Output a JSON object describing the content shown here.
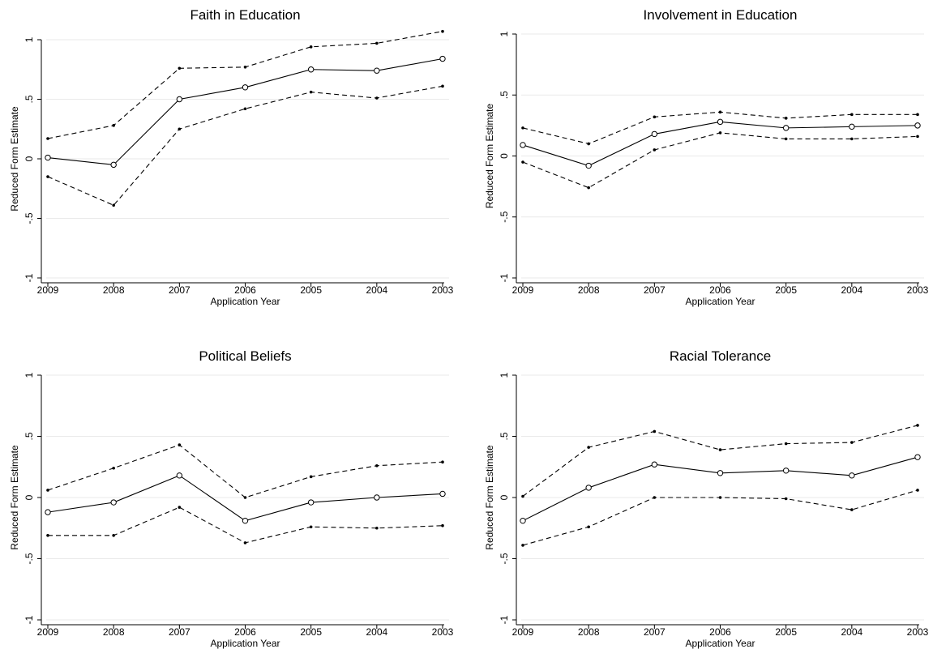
{
  "chart_data": [
    {
      "type": "line",
      "title": "Faith in Education",
      "xlabel": "Application Year",
      "ylabel": "Reduced Form Estimate",
      "categories": [
        "2009",
        "2008",
        "2007",
        "2006",
        "2005",
        "2004",
        "2003"
      ],
      "ylim": [
        -1,
        1
      ],
      "yticks": [
        "-1",
        "-.5",
        "0",
        ".5",
        "1"
      ],
      "grid": true,
      "series": [
        {
          "role": "upper",
          "style": "dashed",
          "values": [
            0.17,
            0.28,
            0.76,
            0.77,
            0.94,
            0.97,
            1.07
          ]
        },
        {
          "role": "estimate",
          "style": "solid",
          "values": [
            0.01,
            -0.05,
            0.5,
            0.6,
            0.75,
            0.74,
            0.84
          ]
        },
        {
          "role": "lower",
          "style": "dashed",
          "values": [
            -0.15,
            -0.39,
            0.25,
            0.42,
            0.56,
            0.51,
            0.61
          ]
        }
      ]
    },
    {
      "type": "line",
      "title": "Involvement in Education",
      "xlabel": "Application Year",
      "ylabel": "Reduced Form Estimate",
      "categories": [
        "2009",
        "2008",
        "2007",
        "2006",
        "2005",
        "2004",
        "2003"
      ],
      "ylim": [
        -1,
        1
      ],
      "yticks": [
        "-1",
        "-.5",
        "0",
        ".5",
        "1"
      ],
      "grid": true,
      "series": [
        {
          "role": "upper",
          "style": "dashed",
          "values": [
            0.23,
            0.1,
            0.32,
            0.36,
            0.31,
            0.34,
            0.34
          ]
        },
        {
          "role": "estimate",
          "style": "solid",
          "values": [
            0.09,
            -0.08,
            0.18,
            0.28,
            0.23,
            0.24,
            0.25
          ]
        },
        {
          "role": "lower",
          "style": "dashed",
          "values": [
            -0.05,
            -0.26,
            0.05,
            0.19,
            0.14,
            0.14,
            0.16
          ]
        }
      ]
    },
    {
      "type": "line",
      "title": "Political Beliefs",
      "xlabel": "Application Year",
      "ylabel": "Reduced Form Estimate",
      "categories": [
        "2009",
        "2008",
        "2007",
        "2006",
        "2005",
        "2004",
        "2003"
      ],
      "ylim": [
        -1,
        1
      ],
      "yticks": [
        "-1",
        "-.5",
        "0",
        ".5",
        "1"
      ],
      "grid": true,
      "series": [
        {
          "role": "upper",
          "style": "dashed",
          "values": [
            0.06,
            0.24,
            0.43,
            0.0,
            0.17,
            0.26,
            0.29
          ]
        },
        {
          "role": "estimate",
          "style": "solid",
          "values": [
            -0.12,
            -0.04,
            0.18,
            -0.19,
            -0.04,
            0.0,
            0.03
          ]
        },
        {
          "role": "lower",
          "style": "dashed",
          "values": [
            -0.31,
            -0.31,
            -0.08,
            -0.37,
            -0.24,
            -0.25,
            -0.23
          ]
        }
      ]
    },
    {
      "type": "line",
      "title": "Racial Tolerance",
      "xlabel": "Application Year",
      "ylabel": "Reduced Form Estimate",
      "categories": [
        "2009",
        "2008",
        "2007",
        "2006",
        "2005",
        "2004",
        "2003"
      ],
      "ylim": [
        -1,
        1
      ],
      "yticks": [
        "-1",
        "-.5",
        "0",
        ".5",
        "1"
      ],
      "grid": true,
      "series": [
        {
          "role": "upper",
          "style": "dashed",
          "values": [
            0.01,
            0.41,
            0.54,
            0.39,
            0.44,
            0.45,
            0.59
          ]
        },
        {
          "role": "estimate",
          "style": "solid",
          "values": [
            -0.19,
            0.08,
            0.27,
            0.2,
            0.22,
            0.18,
            0.33
          ]
        },
        {
          "role": "lower",
          "style": "dashed",
          "values": [
            -0.39,
            -0.24,
            0.0,
            0.0,
            -0.01,
            -0.1,
            0.06
          ]
        }
      ]
    }
  ]
}
